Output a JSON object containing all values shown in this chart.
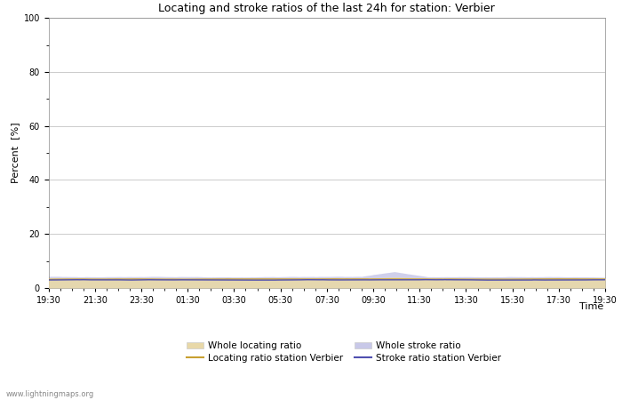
{
  "title": "Locating and stroke ratios of the last 24h for station: Verbier",
  "xlabel": "Time",
  "ylabel": "Percent  [%]",
  "ylim": [
    0,
    100
  ],
  "yticks": [
    0,
    20,
    40,
    60,
    80,
    100
  ],
  "x_labels": [
    "19:30",
    "21:30",
    "23:30",
    "01:30",
    "03:30",
    "05:30",
    "07:30",
    "09:30",
    "11:30",
    "13:30",
    "15:30",
    "17:30",
    "19:30"
  ],
  "background_color": "#ffffff",
  "plot_bg_color": "#ffffff",
  "grid_color": "#cccccc",
  "watermark": "www.lightningmaps.org",
  "whole_locating_fill_color": "#e8d8a8",
  "whole_stroke_fill_color": "#c8c8e8",
  "locating_line_color": "#c8a030",
  "stroke_line_color": "#5050b0",
  "n_points": 289,
  "legend_loc_label": "Whole locating ratio",
  "legend_str_label": "Whole stroke ratio",
  "legend_loc_line_label": "Locating ratio station Verbier",
  "legend_str_line_label": "Stroke ratio station Verbier"
}
